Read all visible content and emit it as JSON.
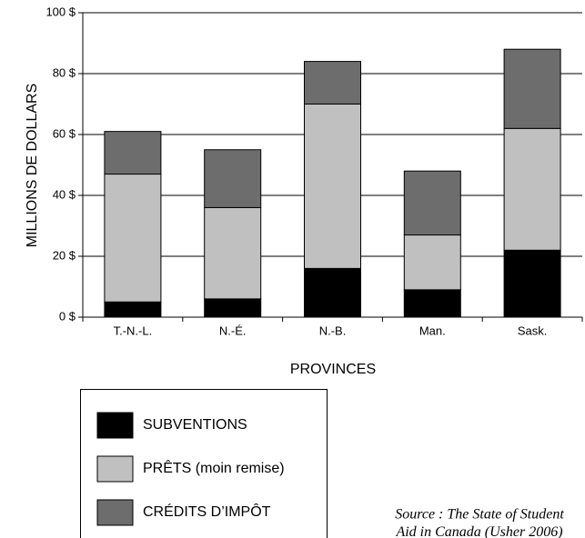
{
  "chart_data": {
    "type": "stacked_bar",
    "categories": [
      "T.-N.-L.",
      "N.-É.",
      "N.-B.",
      "Man.",
      "Sask."
    ],
    "series": [
      {
        "name": "SUBVENTIONS",
        "color": "#000000",
        "values": [
          5,
          6,
          16,
          9,
          22
        ]
      },
      {
        "name": "PRÊTS (moin remise)",
        "color": "#c0c0c0",
        "values": [
          42,
          30,
          54,
          18,
          40
        ]
      },
      {
        "name": "CRÉDITS D’IMPÔT",
        "color": "#6d6d6d",
        "values": [
          14,
          19,
          14,
          21,
          26
        ]
      }
    ],
    "xlabel": "PROVINCES",
    "ylabel": "MILLIONS DE DOLLARS",
    "ylim": [
      0,
      100
    ],
    "yticks": [
      {
        "value": 0,
        "label": "0 $"
      },
      {
        "value": 20,
        "label": "20 $"
      },
      {
        "value": 40,
        "label": "40 $"
      },
      {
        "value": 60,
        "label": "60 $"
      },
      {
        "value": 80,
        "label": "80 $"
      },
      {
        "value": 100,
        "label": "100 $"
      }
    ],
    "grid": true,
    "annotation": [
      "Source : The State of Student",
      "Aid in Canada (Usher 2006)"
    ]
  }
}
